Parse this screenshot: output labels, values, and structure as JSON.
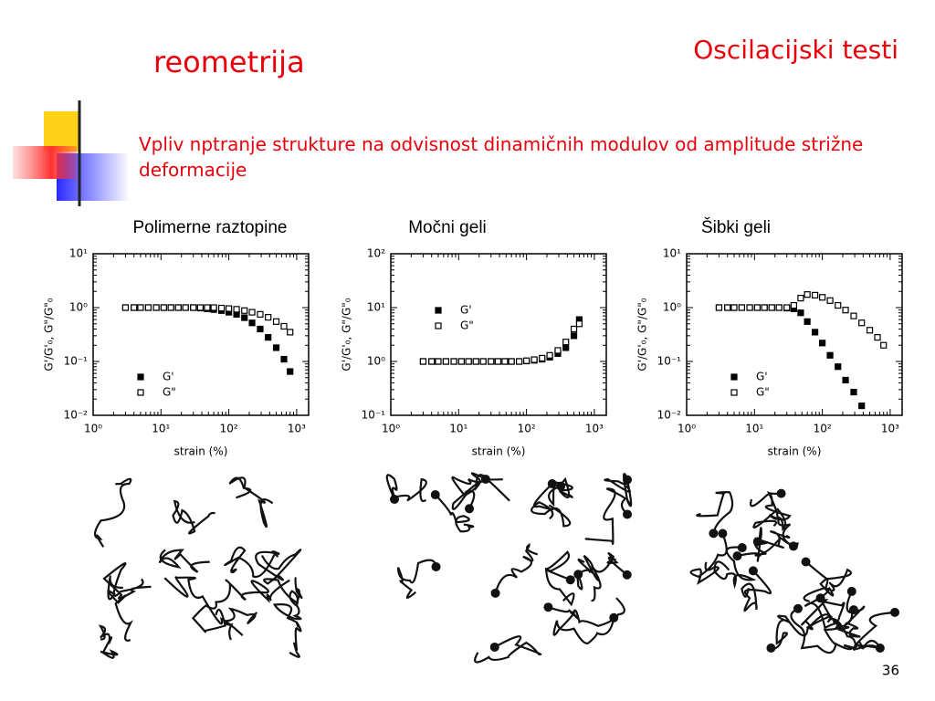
{
  "header": {
    "title": "reometrija",
    "section": "Oscilacijski testi",
    "subtitle": "Vpliv nptranje strukture na odvisnost dinamičnih modulov od amplitude strižne deformacije",
    "page_number": "36"
  },
  "chart_data": [
    {
      "type": "scatter",
      "title": "Polimerne raztopine",
      "x_label": "strain (%)",
      "y_label": "G'/G'₀, G\"/G\"₀",
      "log_x": true,
      "log_y": true,
      "legend": "lower left",
      "x": [
        3,
        4,
        5,
        6.5,
        8.5,
        11,
        14,
        18,
        23,
        30,
        38,
        48,
        60,
        78,
        100,
        130,
        170,
        220,
        290,
        380,
        500,
        650,
        800
      ],
      "series": [
        {
          "name": "G'",
          "color": "#000000",
          "marker": "filled-square",
          "values": [
            1,
            1,
            1,
            1,
            1,
            1,
            1,
            1,
            1,
            1,
            0.98,
            0.95,
            0.92,
            0.88,
            0.82,
            0.75,
            0.65,
            0.52,
            0.4,
            0.28,
            0.18,
            0.11,
            0.065
          ]
        },
        {
          "name": "G\"",
          "color": "#000000",
          "marker": "open-square",
          "values": [
            1,
            1,
            1,
            1,
            1,
            1,
            1,
            1,
            1,
            1,
            1,
            1,
            1,
            0.98,
            0.96,
            0.93,
            0.88,
            0.82,
            0.75,
            0.66,
            0.55,
            0.45,
            0.35
          ]
        }
      ],
      "xlim": [
        1,
        1500
      ],
      "ylim": [
        0.01,
        10
      ],
      "xticks": [
        {
          "value": 1,
          "label": "10⁰"
        },
        {
          "value": 10,
          "label": "10¹"
        },
        {
          "value": 100,
          "label": "10²"
        },
        {
          "value": 1000,
          "label": "10³"
        }
      ],
      "yticks": [
        {
          "value": 0.01,
          "label": "10⁻²"
        },
        {
          "value": 0.1,
          "label": "10⁻¹"
        },
        {
          "value": 1,
          "label": "10⁰"
        },
        {
          "value": 10,
          "label": "10¹"
        }
      ]
    },
    {
      "type": "scatter",
      "title": "Močni geli",
      "x_label": "strain (%)",
      "y_label": "G'/G'₀, G\"/G\"₀",
      "log_x": true,
      "log_y": true,
      "legend": "upper left",
      "x": [
        3,
        4,
        5,
        6.5,
        8.5,
        11,
        14,
        18,
        23,
        30,
        38,
        48,
        60,
        78,
        100,
        130,
        170,
        220,
        290,
        380,
        500,
        600
      ],
      "series": [
        {
          "name": "G'",
          "color": "#000000",
          "marker": "filled-square",
          "values": [
            1,
            1,
            1,
            1,
            1,
            1,
            1,
            1,
            1,
            1,
            1,
            1,
            1,
            1,
            1.02,
            1.05,
            1.1,
            1.2,
            1.4,
            1.8,
            3,
            6
          ]
        },
        {
          "name": "G\"",
          "color": "#000000",
          "marker": "open-square",
          "values": [
            1,
            1,
            1,
            1,
            1,
            1,
            1,
            1,
            1,
            1,
            1,
            1,
            1,
            1,
            1.03,
            1.08,
            1.15,
            1.3,
            1.6,
            2.3,
            4,
            5
          ]
        }
      ],
      "xlim": [
        1,
        1500
      ],
      "ylim": [
        0.1,
        100
      ],
      "xticks": [
        {
          "value": 1,
          "label": "10⁰"
        },
        {
          "value": 10,
          "label": "10¹"
        },
        {
          "value": 100,
          "label": "10²"
        },
        {
          "value": 1000,
          "label": "10³"
        }
      ],
      "yticks": [
        {
          "value": 0.1,
          "label": "10⁻¹"
        },
        {
          "value": 1,
          "label": "10⁰"
        },
        {
          "value": 10,
          "label": "10¹"
        },
        {
          "value": 100,
          "label": "10²"
        }
      ]
    },
    {
      "type": "scatter",
      "title": "Šibki geli",
      "x_label": "strain (%)",
      "y_label": "G'/G'₀, G\"/G\"₀",
      "log_x": true,
      "log_y": true,
      "legend": "lower left",
      "x": [
        3,
        4,
        5,
        6.5,
        8.5,
        11,
        14,
        18,
        23,
        30,
        38,
        48,
        60,
        78,
        100,
        130,
        170,
        220,
        290,
        380,
        500,
        650,
        800
      ],
      "series": [
        {
          "name": "G'",
          "color": "#000000",
          "marker": "filled-square",
          "values": [
            1,
            1,
            1,
            1,
            1,
            1,
            1,
            1,
            1,
            0.98,
            0.95,
            0.8,
            0.55,
            0.35,
            0.22,
            0.13,
            0.08,
            0.045,
            0.027,
            0.015,
            null,
            null,
            null
          ]
        },
        {
          "name": "G\"",
          "color": "#000000",
          "marker": "open-square",
          "values": [
            1,
            1,
            1,
            1,
            1,
            1,
            1,
            1,
            1,
            1,
            1.1,
            1.5,
            1.75,
            1.7,
            1.55,
            1.35,
            1.1,
            0.9,
            0.7,
            0.52,
            0.38,
            0.28,
            0.2
          ]
        }
      ],
      "xlim": [
        1,
        1500
      ],
      "ylim": [
        0.01,
        10
      ],
      "xticks": [
        {
          "value": 1,
          "label": "10⁰"
        },
        {
          "value": 10,
          "label": "10¹"
        },
        {
          "value": 100,
          "label": "10²"
        },
        {
          "value": 1000,
          "label": "10³"
        }
      ],
      "yticks": [
        {
          "value": 0.01,
          "label": "10⁻²"
        },
        {
          "value": 0.1,
          "label": "10⁻¹"
        },
        {
          "value": 1,
          "label": "10⁰"
        },
        {
          "value": 10,
          "label": "10¹"
        }
      ]
    }
  ]
}
